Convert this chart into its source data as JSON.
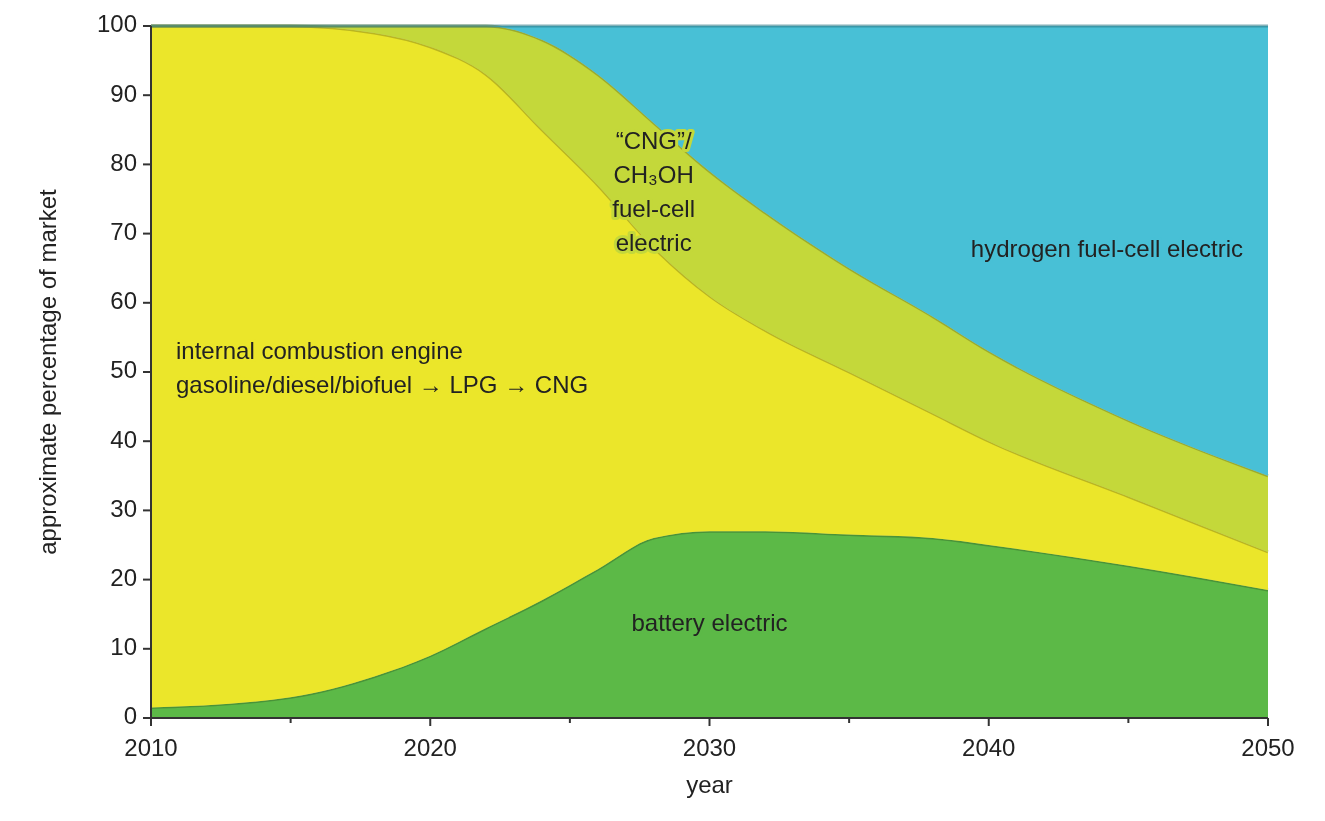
{
  "chart_data": {
    "type": "area",
    "stacked": true,
    "xlabel": "year",
    "ylabel": "approximate percentage of market",
    "x": [
      2010,
      2015,
      2018,
      2020,
      2022,
      2024,
      2026,
      2028,
      2030,
      2032,
      2035,
      2038,
      2040,
      2045,
      2050
    ],
    "series": [
      {
        "name": "battery electric",
        "color": "#5cb947",
        "values": [
          1.5,
          3,
          6,
          9,
          13,
          17,
          21.5,
          26,
          27,
          27,
          26.5,
          26,
          25,
          22,
          18.5
        ]
      },
      {
        "name": "internal combustion engine\ngasoline/diesel/biofuel → LPG → CNG",
        "color": "#ebe62a",
        "values": [
          98.5,
          97,
          93,
          88,
          80,
          68,
          55.5,
          42,
          34,
          29,
          23.5,
          18,
          15,
          10,
          5.5
        ]
      },
      {
        "name": "“CNG”/\nCH₃OH\nfuel-cell\nelectric",
        "color": "#c4d83a",
        "values": [
          0,
          0,
          1,
          3,
          7,
          13,
          16,
          18,
          18,
          17,
          15,
          14,
          13,
          11,
          11
        ]
      },
      {
        "name": "hydrogen fuel-cell electric",
        "color": "#48c0d6",
        "values": [
          0,
          0,
          0,
          0,
          0,
          2,
          7,
          14,
          21,
          27,
          35,
          42,
          47,
          57,
          65
        ]
      }
    ],
    "xlim": [
      2010,
      2050
    ],
    "xticks": [
      2010,
      {
        "value": 2015,
        "label": null
      },
      2020,
      {
        "value": 2025,
        "label": null
      },
      2030,
      {
        "value": 2035,
        "label": null
      },
      2040,
      {
        "value": 2045,
        "label": null
      },
      2050
    ],
    "ylim": [
      0,
      100
    ],
    "yticks": [
      0,
      10,
      20,
      30,
      40,
      50,
      60,
      70,
      80,
      90,
      100
    ],
    "grid": false
  }
}
